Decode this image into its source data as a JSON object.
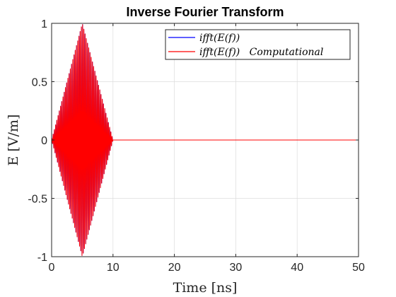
{
  "chart_data": {
    "type": "line",
    "title": "Inverse Fourier Transform",
    "xlabel": "Time [ns]",
    "ylabel": "E [V/m]",
    "xlim": [
      0,
      50
    ],
    "ylim": [
      -1,
      1
    ],
    "x_ticks": [
      0,
      10,
      20,
      30,
      40,
      50
    ],
    "y_ticks": [
      -1,
      -0.5,
      0,
      0.5,
      1
    ],
    "x_tick_labels": [
      "0",
      "10",
      "20",
      "30",
      "40",
      "50"
    ],
    "y_tick_labels": [
      "-1",
      "-0.5",
      "0",
      "0.5",
      "1"
    ],
    "grid": true,
    "legend_position": "top-right",
    "series": [
      {
        "name": "ifft(E(f))",
        "color": "#0000ff",
        "description_values": {
          "carrier_frequency_ghz": 5.0,
          "envelope": "triangular",
          "envelope_start_ns": 0,
          "envelope_peak_ns": 5,
          "envelope_end_ns": 10,
          "peak_amplitude": 1.0,
          "value_after_10ns": 0
        }
      },
      {
        "name": "ifft(E(f))   Computational",
        "color": "#ff0000",
        "description_values": {
          "carrier_frequency_ghz": 5.0,
          "envelope": "triangular",
          "envelope_start_ns": 0,
          "envelope_peak_ns": 5,
          "envelope_end_ns": 10,
          "peak_amplitude": 1.0,
          "value_after_10ns": 0
        }
      }
    ]
  }
}
